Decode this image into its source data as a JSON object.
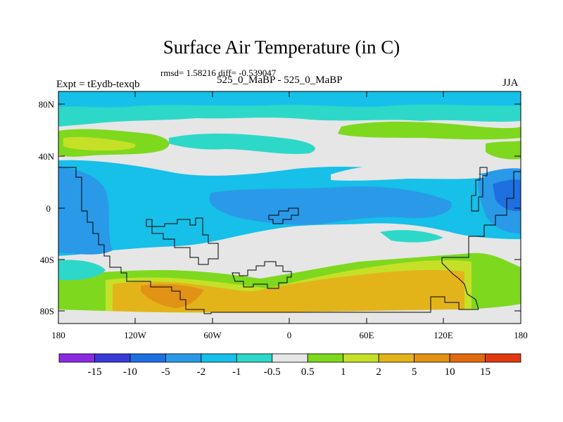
{
  "title": "Surface Air Temperature (in C)",
  "stats": "rmsd= 1.58216 diff= -0.539047",
  "left_label": "Expt = tEydb-texqb",
  "center_label": "525_0_MaBP - 525_0_MaBP",
  "right_label": "JJA",
  "x_ticks": [
    "180",
    "120W",
    "60W",
    "0",
    "60E",
    "120E",
    "180"
  ],
  "y_ticks": [
    "80N",
    "40N",
    "0",
    "40S",
    "80S"
  ],
  "colorbar": {
    "colors": [
      "#8a2be2",
      "#3a3ad8",
      "#1e6fe0",
      "#2a9ae8",
      "#16c0e8",
      "#2ed8c8",
      "#e6e6e6",
      "#7ed81e",
      "#c6e028",
      "#e2b41a",
      "#e29214",
      "#e06a10",
      "#e03a10"
    ],
    "labels": [
      "-15",
      "-10",
      "-5",
      "-2",
      "-1",
      "-0.5",
      "0.5",
      "1",
      "2",
      "5",
      "10",
      "15"
    ]
  },
  "palette": {
    "neutral": "#e6e6e6",
    "light_cyan": "#2ed8c8",
    "cyan": "#16c0e8",
    "sky_blue": "#2a9ae8",
    "blue": "#1e6fe0",
    "green": "#7ed81e",
    "yellow_green": "#c6e028",
    "gold": "#e2b41a",
    "orange": "#e29214"
  }
}
